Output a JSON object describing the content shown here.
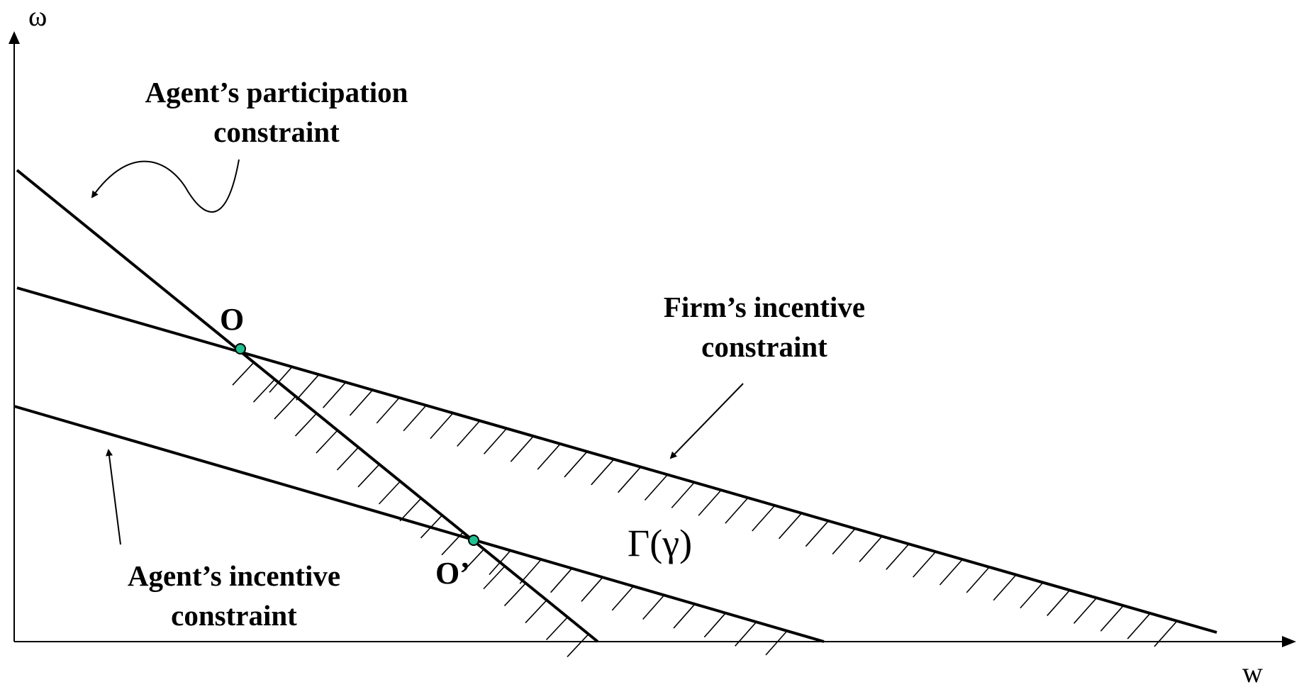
{
  "axes": {
    "y_label": "ω",
    "x_label": "w"
  },
  "points": {
    "O": "O",
    "O_prime": "O’"
  },
  "region_label": "Γ(γ)",
  "annotations": {
    "participation": {
      "line1": "Agent’s participation",
      "line2": "constraint"
    },
    "firm_incentive": {
      "line1": "Firm’s incentive",
      "line2": "constraint"
    },
    "agent_incentive": {
      "line1": "Agent’s incentive",
      "line2": "constraint"
    }
  },
  "colors": {
    "line": "#000000",
    "point_fill": "#20c090"
  }
}
